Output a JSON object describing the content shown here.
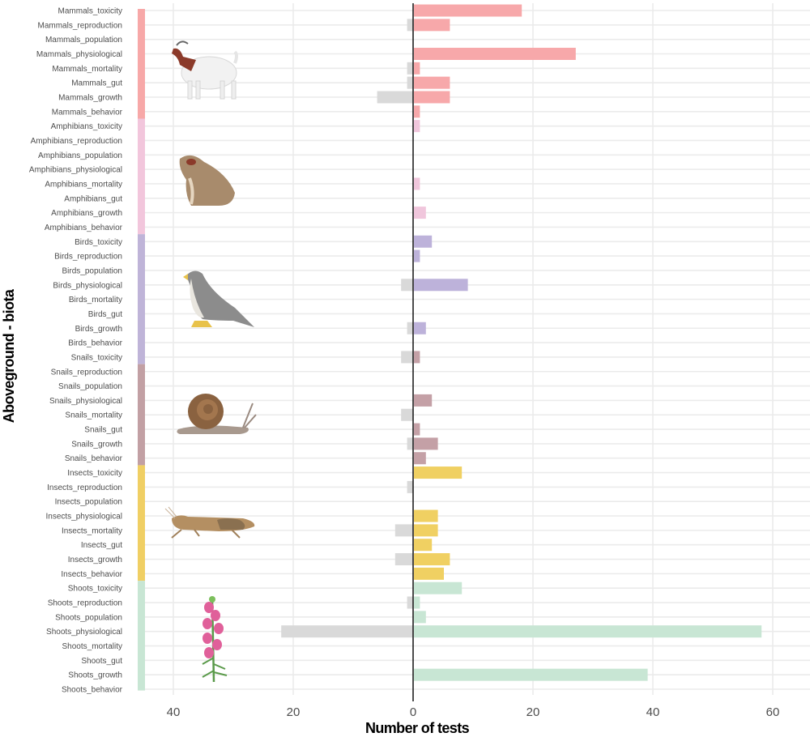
{
  "chart_data": {
    "type": "bar",
    "orientation": "horizontal-diverging",
    "xlabel": "Number of tests",
    "ylabel": "Aboveground - biota",
    "xlim": [
      -46,
      66
    ],
    "x_ticks": [
      {
        "value": -40,
        "label": "40"
      },
      {
        "value": -20,
        "label": "20"
      },
      {
        "value": 0,
        "label": "0"
      },
      {
        "value": 20,
        "label": "20"
      },
      {
        "value": 40,
        "label": "40"
      },
      {
        "value": 60,
        "label": "60"
      }
    ],
    "grid": true,
    "negative_series_color": "#d9d9d9",
    "groups": [
      {
        "name": "Mammals",
        "color": "#f7a8aa",
        "strip_color": "#f7a8a8",
        "strip_rows": 7.6,
        "icon": "goat-illustration"
      },
      {
        "name": "Amphibians",
        "color": "#f0c6dc",
        "strip_color": "#f2c6dc",
        "strip_rows": 8,
        "icon": "frog-illustration"
      },
      {
        "name": "Birds",
        "color": "#bdb2da",
        "strip_color": "#bfb4d8",
        "strip_rows": 9,
        "icon": "falcon-illustration"
      },
      {
        "name": "Snails",
        "color": "#c4a0a6",
        "strip_color": "#c2a0a4",
        "strip_rows": 7,
        "icon": "snail-illustration"
      },
      {
        "name": "Insects",
        "color": "#f0d062",
        "strip_color": "#f0cf64",
        "strip_rows": 8,
        "icon": "grasshopper-illustration"
      },
      {
        "name": "Shoots",
        "color": "#c8e6d4",
        "strip_color": "#c8e6d4",
        "strip_rows": 7.6,
        "icon": "snapdragon-plant-illustration"
      }
    ],
    "categories": [
      "Mammals_toxicity",
      "Mammals_reproduction",
      "Mammals_population",
      "Mammals_physiological",
      "Mammals_mortality",
      "Mammals_gut",
      "Mammals_growth",
      "Mammals_behavior",
      "Amphibians_toxicity",
      "Amphibians_reproduction",
      "Amphibians_population",
      "Amphibians_physiological",
      "Amphibians_mortality",
      "Amphibians_gut",
      "Amphibians_growth",
      "Amphibians_behavior",
      "Birds_toxicity",
      "Birds_reproduction",
      "Birds_population",
      "Birds_physiological",
      "Birds_mortality",
      "Birds_gut",
      "Birds_growth",
      "Birds_behavior",
      "Snails_toxicity",
      "Snails_reproduction",
      "Snails_population",
      "Snails_physiological",
      "Snails_mortality",
      "Snails_gut",
      "Snails_growth",
      "Snails_behavior",
      "Insects_toxicity",
      "Insects_reproduction",
      "Insects_population",
      "Insects_physiological",
      "Insects_mortality",
      "Insects_gut",
      "Insects_growth",
      "Insects_behavior",
      "Shoots_toxicity",
      "Shoots_reproduction",
      "Shoots_population",
      "Shoots_physiological",
      "Shoots_mortality",
      "Shoots_gut",
      "Shoots_growth",
      "Shoots_behavior"
    ],
    "series": [
      {
        "name": "positive",
        "values": [
          18,
          6,
          0,
          27,
          1,
          6,
          6,
          1,
          1,
          0,
          0,
          0,
          1,
          0,
          2,
          0,
          3,
          1,
          0,
          9,
          0,
          0,
          2,
          0,
          1,
          0,
          0,
          3,
          0,
          1,
          4,
          2,
          8,
          0,
          0,
          4,
          4,
          3,
          6,
          5,
          8,
          1,
          2,
          58,
          0,
          0,
          39,
          0
        ]
      },
      {
        "name": "negative",
        "values": [
          0,
          1,
          0,
          0,
          1,
          1,
          6,
          0,
          0,
          0,
          0,
          0,
          0,
          0,
          0,
          0,
          0,
          0,
          0,
          2,
          0,
          0,
          1,
          0,
          2,
          0,
          0,
          0,
          2,
          0,
          1,
          0,
          0,
          1,
          0,
          0,
          3,
          0,
          3,
          0,
          0,
          1,
          0,
          22,
          0,
          0,
          0,
          0
        ]
      }
    ]
  }
}
